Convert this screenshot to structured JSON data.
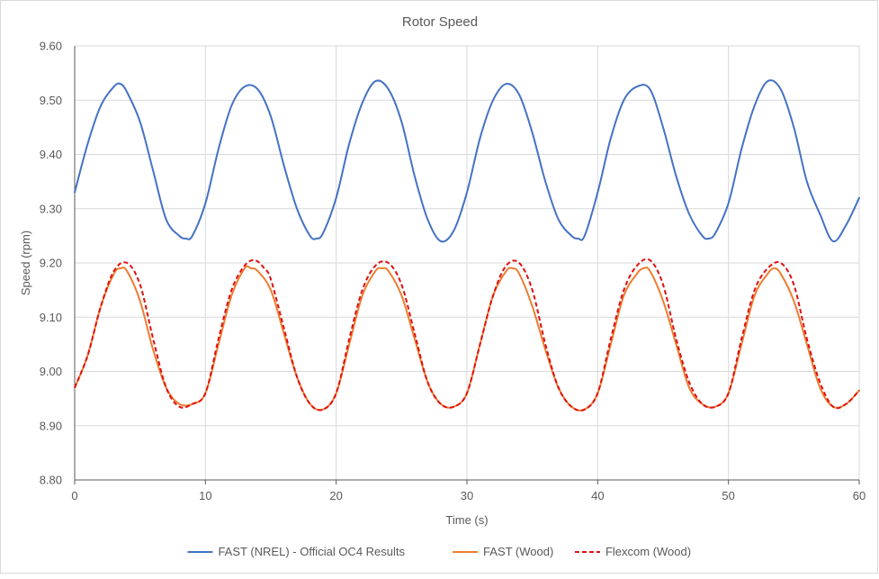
{
  "chart_data": {
    "type": "line",
    "title": "Rotor Speed",
    "xlabel": "Time (s)",
    "ylabel": "Speed (rpm)",
    "xlim": [
      0,
      60
    ],
    "ylim": [
      8.8,
      9.6
    ],
    "grid": true,
    "legend_position": "bottom",
    "x_ticks": [
      0,
      10,
      20,
      30,
      40,
      50,
      60
    ],
    "x_tick_labels": [
      "0",
      "10",
      "20",
      "30",
      "40",
      "50",
      "60"
    ],
    "y_ticks": [
      8.8,
      8.9,
      9.0,
      9.1,
      9.2,
      9.3,
      9.4,
      9.5,
      9.6
    ],
    "y_tick_labels": [
      "8.80",
      "8.90",
      "9.00",
      "9.10",
      "9.20",
      "9.30",
      "9.40",
      "9.50",
      "9.60"
    ],
    "series": [
      {
        "name": "FAST (NREL) - Official OC4 Results",
        "color": "#4472c4",
        "dash": "solid",
        "x": [
          0,
          1,
          2,
          3,
          3.5,
          4,
          5,
          6,
          7,
          8,
          8.5,
          9,
          10,
          11,
          12,
          13,
          14,
          15,
          16,
          17,
          18,
          18.5,
          19,
          20,
          21,
          22,
          23,
          24,
          25,
          26,
          27,
          28,
          29,
          30,
          31,
          32,
          33,
          34,
          35,
          36,
          37,
          38,
          38.5,
          39,
          40,
          41,
          42,
          43,
          44,
          45,
          46,
          47,
          48,
          48.5,
          49,
          50,
          51,
          52,
          53,
          54,
          55,
          56,
          57,
          58,
          59,
          60
        ],
        "y": [
          9.33,
          9.42,
          9.49,
          9.525,
          9.53,
          9.515,
          9.46,
          9.37,
          9.28,
          9.25,
          9.245,
          9.25,
          9.31,
          9.41,
          9.49,
          9.525,
          9.52,
          9.47,
          9.38,
          9.3,
          9.25,
          9.245,
          9.255,
          9.32,
          9.42,
          9.495,
          9.535,
          9.52,
          9.46,
          9.36,
          9.28,
          9.24,
          9.26,
          9.33,
          9.43,
          9.5,
          9.53,
          9.51,
          9.44,
          9.35,
          9.28,
          9.25,
          9.245,
          9.25,
          9.33,
          9.43,
          9.5,
          9.525,
          9.52,
          9.45,
          9.36,
          9.29,
          9.25,
          9.245,
          9.255,
          9.31,
          9.41,
          9.49,
          9.535,
          9.52,
          9.45,
          9.35,
          9.29,
          9.24,
          9.27,
          9.32
        ]
      },
      {
        "name": "FAST (Wood)",
        "color": "#ed7d31",
        "dash": "solid",
        "x": [
          0,
          1,
          2,
          3,
          3.5,
          4,
          5,
          6,
          7,
          8,
          9,
          10,
          11,
          12,
          13,
          13.5,
          14,
          15,
          16,
          17,
          18,
          19,
          20,
          21,
          22,
          23,
          23.5,
          24,
          25,
          26,
          27,
          28,
          29,
          30,
          31,
          32,
          33,
          33.5,
          34,
          35,
          36,
          37,
          38,
          39,
          40,
          41,
          42,
          43,
          43.5,
          44,
          45,
          46,
          47,
          48,
          49,
          50,
          51,
          52,
          53,
          53.5,
          54,
          55,
          56,
          57,
          58,
          59,
          60
        ],
        "y": [
          8.97,
          9.03,
          9.12,
          9.18,
          9.19,
          9.185,
          9.13,
          9.04,
          8.97,
          8.94,
          8.94,
          8.96,
          9.05,
          9.14,
          9.19,
          9.19,
          9.185,
          9.15,
          9.07,
          8.99,
          8.94,
          8.93,
          8.96,
          9.05,
          9.14,
          9.185,
          9.19,
          9.185,
          9.14,
          9.06,
          8.98,
          8.94,
          8.935,
          8.96,
          9.05,
          9.14,
          9.185,
          9.19,
          9.18,
          9.12,
          9.04,
          8.97,
          8.935,
          8.93,
          8.96,
          9.05,
          9.14,
          9.18,
          9.19,
          9.185,
          9.13,
          9.05,
          8.97,
          8.94,
          8.935,
          8.96,
          9.05,
          9.14,
          9.18,
          9.19,
          9.18,
          9.13,
          9.05,
          8.97,
          8.935,
          8.94,
          8.965
        ]
      },
      {
        "name": "Flexcom (Wood)",
        "color": "#e01010",
        "dash": "dashed",
        "x": [
          0,
          1,
          2,
          3,
          4,
          5,
          6,
          7,
          8,
          9,
          10,
          11,
          12,
          13,
          13.8,
          14.5,
          15,
          16,
          17,
          18,
          19,
          20,
          21,
          22,
          23,
          24,
          25,
          26,
          27,
          28,
          29,
          30,
          31,
          32,
          33,
          34,
          35,
          36,
          37,
          38,
          39,
          40,
          41,
          42,
          43,
          44,
          45,
          46,
          47,
          48,
          49,
          50,
          51,
          52,
          53,
          54,
          55,
          56,
          57,
          58,
          59,
          60
        ],
        "y": [
          8.97,
          9.03,
          9.12,
          9.185,
          9.2,
          9.16,
          9.06,
          8.97,
          8.935,
          8.94,
          8.96,
          9.06,
          9.15,
          9.195,
          9.205,
          9.19,
          9.17,
          9.08,
          8.99,
          8.94,
          8.93,
          8.96,
          9.06,
          9.15,
          9.195,
          9.2,
          9.16,
          9.07,
          8.98,
          8.94,
          8.935,
          8.96,
          9.05,
          9.14,
          9.195,
          9.2,
          9.15,
          9.05,
          8.97,
          8.935,
          8.93,
          8.96,
          9.06,
          9.15,
          9.195,
          9.205,
          9.16,
          9.06,
          8.98,
          8.94,
          8.935,
          8.96,
          9.06,
          9.15,
          9.19,
          9.2,
          9.16,
          9.06,
          8.98,
          8.935,
          8.94,
          8.965
        ]
      }
    ]
  }
}
